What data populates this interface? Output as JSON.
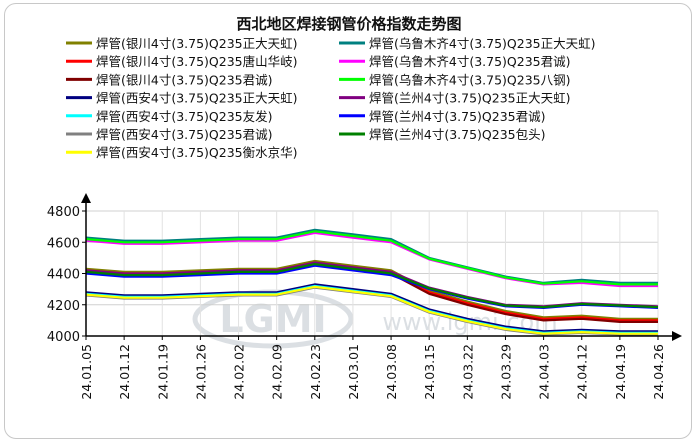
{
  "chart_data": {
    "type": "line",
    "title": "西北地区焊接钢管价格指数走势图",
    "xlabel": "",
    "ylabel": "",
    "ylim": [
      4000,
      4800
    ],
    "yticks": [
      4000,
      4200,
      4400,
      4600,
      4800
    ],
    "grid": true,
    "legend_position": "top",
    "watermark": "LGMI www.lgmi.com",
    "x": [
      "24.01.05",
      "24.01.12",
      "24.01.19",
      "24.01.26",
      "24.02.02",
      "24.02.09",
      "24.02.23",
      "24.03.01",
      "24.03.08",
      "24.03.15",
      "24.03.22",
      "24.03.29",
      "24.04.03",
      "24.04.12",
      "24.04.19",
      "24.04.26"
    ],
    "series": [
      {
        "name": "焊管(银川4寸(3.75)Q235正大天虹)",
        "color": "#808000",
        "values": [
          4430,
          4410,
          4410,
          4420,
          4430,
          4430,
          4480,
          4450,
          4420,
          4290,
          4220,
          4160,
          4120,
          4130,
          4110,
          4110
        ]
      },
      {
        "name": "焊管(乌鲁木齐4寸(3.75)Q235正大天虹)",
        "color": "#008080",
        "values": [
          4630,
          4610,
          4610,
          4620,
          4630,
          4630,
          4680,
          4650,
          4620,
          4500,
          4440,
          4380,
          4340,
          4360,
          4340,
          4340
        ]
      },
      {
        "name": "焊管(银川4寸(3.75)Q235唐山华岐)",
        "color": "#ff0000",
        "values": [
          4420,
          4400,
          4400,
          4410,
          4420,
          4420,
          4470,
          4440,
          4410,
          4280,
          4210,
          4150,
          4110,
          4120,
          4100,
          4100
        ]
      },
      {
        "name": "焊管(乌鲁木齐4寸(3.75)Q235君诚)",
        "color": "#ff00ff",
        "values": [
          4610,
          4590,
          4590,
          4600,
          4610,
          4610,
          4660,
          4630,
          4600,
          4490,
          4430,
          4370,
          4330,
          4340,
          4320,
          4320
        ]
      },
      {
        "name": "焊管(银川4寸(3.75)Q235君诚)",
        "color": "#800000",
        "values": [
          4410,
          4390,
          4390,
          4400,
          4410,
          4410,
          4460,
          4430,
          4400,
          4270,
          4200,
          4140,
          4100,
          4110,
          4090,
          4090
        ]
      },
      {
        "name": "焊管(乌鲁木齐4寸(3.75)Q235八钢)",
        "color": "#00ff00",
        "values": [
          4620,
          4600,
          4600,
          4610,
          4620,
          4620,
          4670,
          4640,
          4610,
          4495,
          4435,
          4375,
          4335,
          4350,
          4330,
          4330
        ]
      },
      {
        "name": "焊管(西安4寸(3.75)Q235正大天虹)",
        "color": "#000080",
        "values": [
          4280,
          4260,
          4260,
          4270,
          4280,
          4280,
          4330,
          4300,
          4270,
          4170,
          4110,
          4060,
          4030,
          4040,
          4030,
          4030
        ]
      },
      {
        "name": "焊管(兰州4寸(3.75)Q235正大天虹)",
        "color": "#800080",
        "values": [
          4420,
          4400,
          4400,
          4410,
          4420,
          4420,
          4470,
          4440,
          4410,
          4310,
          4250,
          4200,
          4190,
          4210,
          4200,
          4190
        ]
      },
      {
        "name": "焊管(西安4寸(3.75)Q235友发)",
        "color": "#00ffff",
        "values": [
          4270,
          4250,
          4250,
          4260,
          4270,
          4270,
          4320,
          4290,
          4260,
          4160,
          4100,
          4050,
          4020,
          4030,
          4020,
          4020
        ]
      },
      {
        "name": "焊管(兰州4寸(3.75)Q235君诚)",
        "color": "#0000ff",
        "values": [
          4400,
          4380,
          4380,
          4390,
          4400,
          4400,
          4450,
          4420,
          4390,
          4300,
          4240,
          4190,
          4180,
          4200,
          4190,
          4180
        ]
      },
      {
        "name": "焊管(西安4寸(3.75)Q235君诚)",
        "color": "#808080",
        "values": [
          4260,
          4240,
          4240,
          4250,
          4260,
          4260,
          4310,
          4280,
          4250,
          4150,
          4090,
          4040,
          4010,
          4020,
          4010,
          4010
        ]
      },
      {
        "name": "焊管(兰州4寸(3.75)Q235包头)",
        "color": "#008000",
        "values": [
          4410,
          4390,
          4390,
          4400,
          4410,
          4410,
          4460,
          4430,
          4400,
          4305,
          4245,
          4195,
          4185,
          4205,
          4195,
          4185
        ]
      },
      {
        "name": "焊管(西安4寸(3.75)Q235衡水京华)",
        "color": "#ffff00",
        "values": [
          4265,
          4245,
          4245,
          4255,
          4265,
          4265,
          4315,
          4285,
          4255,
          4155,
          4095,
          4045,
          4015,
          4025,
          4015,
          4015
        ]
      }
    ]
  }
}
